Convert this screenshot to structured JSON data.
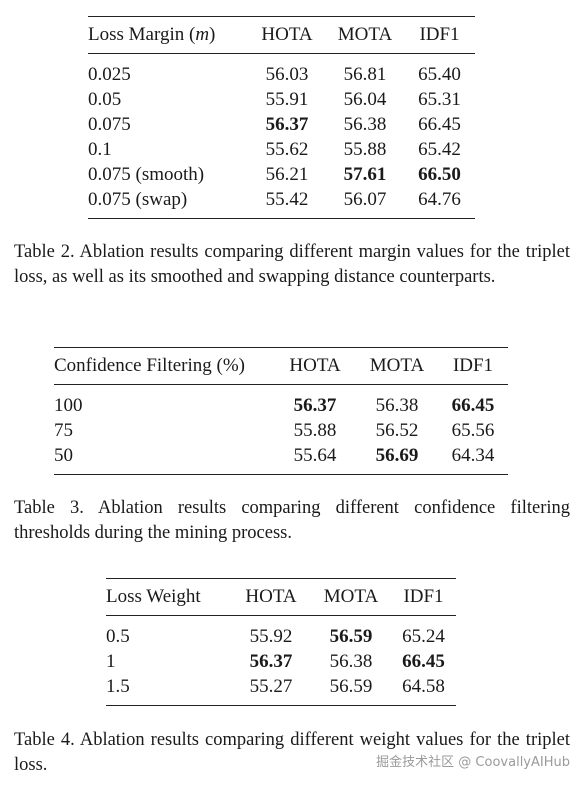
{
  "table2": {
    "headers": [
      "Loss Margin (m)",
      "HOTA",
      "MOTA",
      "IDF1"
    ],
    "rows": [
      [
        "0.025",
        "56.03",
        "56.81",
        "65.40"
      ],
      [
        "0.05",
        "55.91",
        "56.04",
        "65.31"
      ],
      [
        "0.075",
        "56.37",
        "56.38",
        "66.45"
      ],
      [
        "0.1",
        "55.62",
        "55.88",
        "65.42"
      ],
      [
        "0.075 (smooth)",
        "56.21",
        "57.61",
        "66.50"
      ],
      [
        "0.075 (swap)",
        "55.42",
        "56.07",
        "64.76"
      ]
    ],
    "caption": "Table 2. Ablation results comparing different margin values for the triplet loss, as well as its smoothed and swapping distance counterparts."
  },
  "table3": {
    "headers": [
      "Confidence Filtering (%)",
      "HOTA",
      "MOTA",
      "IDF1"
    ],
    "rows": [
      [
        "100",
        "56.37",
        "56.38",
        "66.45"
      ],
      [
        "75",
        "55.88",
        "56.52",
        "65.56"
      ],
      [
        "50",
        "55.64",
        "56.69",
        "64.34"
      ]
    ],
    "caption": "Table 3. Ablation results comparing different confidence filtering thresholds during the mining process."
  },
  "table4": {
    "headers": [
      "Loss Weight",
      "HOTA",
      "MOTA",
      "IDF1"
    ],
    "rows": [
      [
        "0.5",
        "55.92",
        "56.59",
        "65.24"
      ],
      [
        "1",
        "56.37",
        "56.38",
        "66.45"
      ],
      [
        "1.5",
        "55.27",
        "56.59",
        "64.58"
      ]
    ],
    "caption": "Table 4. Ablation results comparing different weight values for the triplet loss."
  },
  "watermark": "掘金技术社区 @ CoovallyAIHub"
}
